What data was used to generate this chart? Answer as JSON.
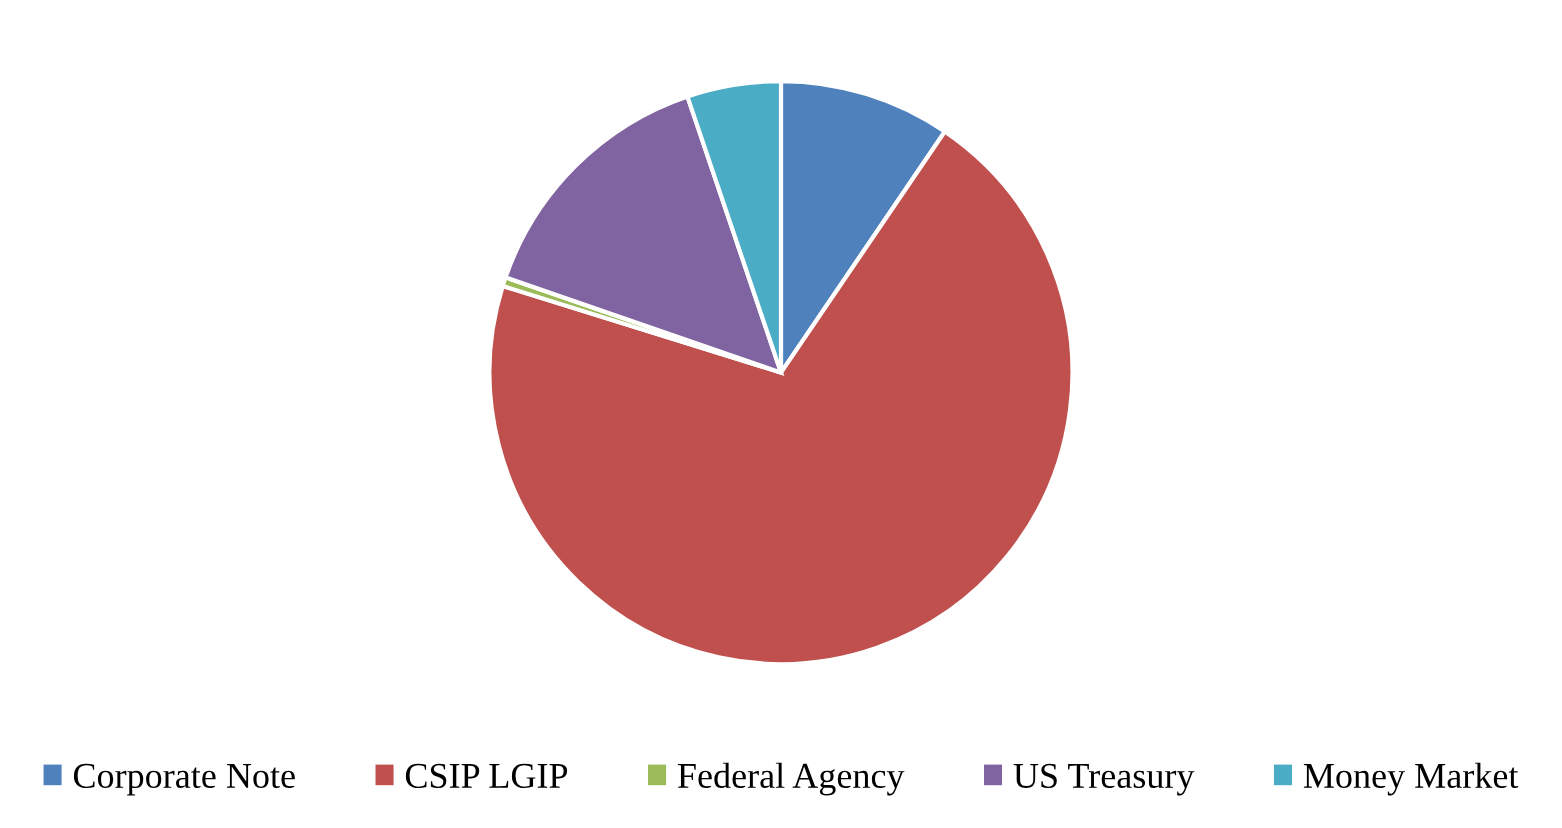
{
  "chart_data": {
    "type": "pie",
    "categories": [
      "Corporate Note",
      "CSIP LGIP",
      "Federal Agency",
      "US Treasury",
      "Money Market"
    ],
    "values": [
      9.5,
      70.3,
      0.5,
      14.5,
      5.2
    ],
    "colors": [
      "#4f81bd",
      "#c0504d",
      "#9bbb59",
      "#8064a2",
      "#4bacc6"
    ],
    "legend": "bottom"
  }
}
